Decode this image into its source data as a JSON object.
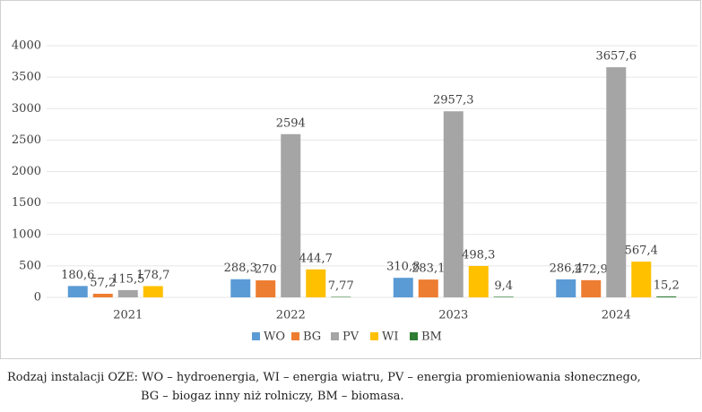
{
  "chart_data": {
    "type": "bar",
    "categories": [
      "2021",
      "2022",
      "2023",
      "2024"
    ],
    "series": [
      {
        "name": "WO",
        "color": "#5b9bd5",
        "values": [
          180.6,
          288.3,
          310.8,
          286.4
        ],
        "value_labels": [
          "180,6",
          "288,3",
          "310,8",
          "286,4"
        ]
      },
      {
        "name": "BG",
        "color": "#ed7d31",
        "values": [
          57.2,
          270,
          283.1,
          272.9
        ],
        "value_labels": [
          "57,2",
          "270",
          "283,1",
          "272,9"
        ]
      },
      {
        "name": "PV",
        "color": "#a5a5a5",
        "values": [
          115.5,
          2594,
          2957.3,
          3657.6
        ],
        "value_labels": [
          "115,5",
          "2594",
          "2957,3",
          "3657,6"
        ]
      },
      {
        "name": "WI",
        "color": "#ffc000",
        "values": [
          178.7,
          444.7,
          498.3,
          567.4
        ],
        "value_labels": [
          "178,7",
          "444,7",
          "498,3",
          "567,4"
        ]
      },
      {
        "name": "BM",
        "color": "#2e7d32",
        "values": [
          null,
          7.77,
          9.4,
          15.2
        ],
        "value_labels": [
          null,
          "7,77",
          "9,4",
          "15,2"
        ]
      }
    ],
    "ylim": [
      0,
      4000
    ],
    "yticks": [
      0,
      500,
      1000,
      1500,
      2000,
      2500,
      3000,
      3500,
      4000
    ],
    "grid": true,
    "legend": "bottom"
  },
  "caption": [
    "Rodzaj instalacji OZE: WO – hydroenergia, WI – energia wiatru, PV – energia promieniowania słonecznego,",
    "BG – biogaz  inny niż rolniczy, BM – biomasa."
  ]
}
